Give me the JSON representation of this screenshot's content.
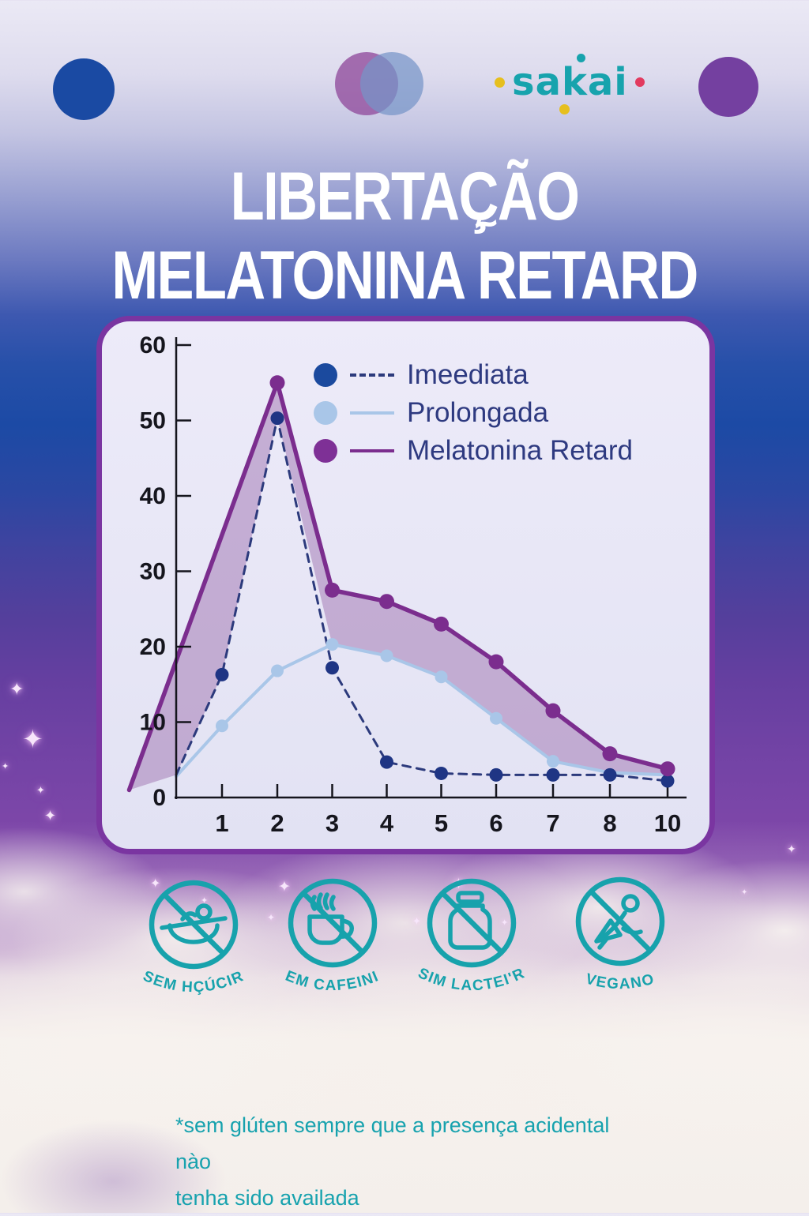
{
  "brand": {
    "logo_text": "sakai",
    "logo_color": "#17a3ad",
    "dot_left_color": "#e6bf1e",
    "dot_right_color": "#e23a5f",
    "dot_top_color": "#17a3ad",
    "dot_bottom_color": "#e6bf1e"
  },
  "title": {
    "line1": "LIBERTAÇÃO",
    "line2": "MELATONINA RETARD",
    "stray_mark": "~"
  },
  "chart_data": {
    "type": "line",
    "title": "",
    "xlabel": "",
    "ylabel": "",
    "x_tick_labels": [
      "1",
      "2",
      "3",
      "4",
      "5",
      "6",
      "7",
      "8",
      "10"
    ],
    "y_tick_labels": [
      "0",
      "10",
      "20",
      "30",
      "40",
      "50",
      "60"
    ],
    "ylim": [
      0,
      60
    ],
    "grid": false,
    "legend_position": "top-right",
    "series": [
      {
        "name": "Imeediata",
        "style": "dashed",
        "line_color": "#2c3a7c",
        "marker_color": "#1f3584",
        "x_slots": [
          0,
          1,
          2,
          3,
          4,
          5,
          6,
          7,
          8,
          9
        ],
        "values": [
          3,
          16.3,
          50.3,
          17.2,
          4.7,
          3.2,
          3,
          3,
          3,
          2.2
        ],
        "marker_slots": [
          1,
          2,
          3,
          4,
          5,
          6,
          7,
          8,
          9
        ]
      },
      {
        "name": "Prolongada",
        "style": "solid",
        "line_color": "#a9c6e8",
        "marker_color": "#a9c6e8",
        "x_slots": [
          0,
          1,
          2,
          3,
          4,
          5,
          6,
          7,
          8,
          9
        ],
        "values": [
          2.8,
          9.5,
          16.8,
          20.3,
          18.8,
          16,
          10.5,
          4.8,
          3.3,
          3
        ],
        "marker_slots": [
          1,
          2,
          3,
          4,
          5,
          6,
          7
        ]
      },
      {
        "name": "Melatonina Retard",
        "style": "solid",
        "line_color": "#7b2d8e",
        "marker_color": "#7b2d8e",
        "x_slots": [
          -0.85,
          2,
          3,
          4,
          5,
          6,
          7,
          8,
          9
        ],
        "values": [
          1,
          55,
          27.5,
          26,
          23,
          18,
          11.5,
          5.8,
          3.8
        ],
        "marker_slots": [
          2,
          3,
          4,
          5,
          6,
          7,
          8,
          9
        ]
      }
    ],
    "fill_between": {
      "upper": "Melatonina Retard",
      "lower": "max(Imeediata, Prolongada)",
      "color": "rgba(150,102,168,0.45)"
    },
    "legend": [
      {
        "label": "Imeediata",
        "dot_color": "#1b4a9e",
        "sample": "dashed",
        "sample_color": "#2c3a7c"
      },
      {
        "label": "Prolongada",
        "dot_color": "#a9c6e8",
        "sample": "solid",
        "sample_color": "#a9c6e8"
      },
      {
        "label": "Melatonina Retard",
        "dot_color": "#7e3096",
        "sample": "solid",
        "sample_color": "#7b2d8e"
      }
    ]
  },
  "badges": [
    {
      "label": "SEM HÇÚCIR",
      "icon": "no-sugar-icon"
    },
    {
      "label": "SEM CAFEINIA",
      "icon": "no-caffeine-icon"
    },
    {
      "label": "SIM LACTEI'R",
      "icon": "no-lactose-icon"
    },
    {
      "label": "VEGANO",
      "icon": "vegan-icon"
    }
  ],
  "footnote": {
    "line1": "*sem glúten sempre que a presença acidental nào",
    "line2": "tenha sido availada"
  },
  "decorations": {
    "star_glyph": "✦",
    "circle_left_color": "#1a4aa3",
    "circle_mid_left_color": "#9452a0",
    "circle_mid_right_color": "#7694c8",
    "circle_right_color": "#7440a0"
  },
  "colors": {
    "accent_teal": "#17a2ac",
    "deep_blue": "#1d4ba6",
    "purple": "#7b44a8",
    "panel_border": "#7a35a1",
    "navy_text": "#2e3a80"
  }
}
